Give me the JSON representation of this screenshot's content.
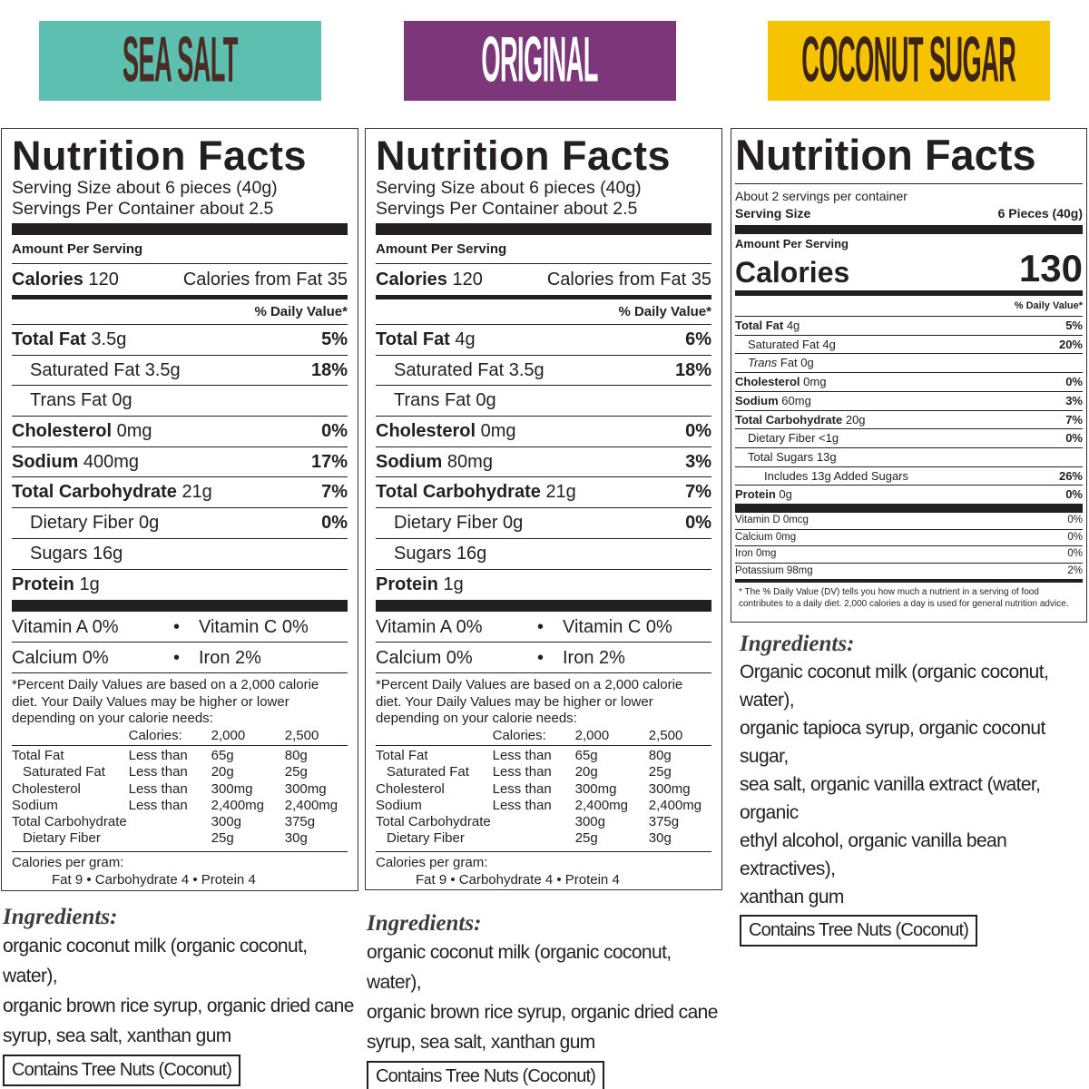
{
  "banners": {
    "left": "SEA SALT",
    "middle": "ORIGINAL",
    "right": "COCONUT SUGAR"
  },
  "colors": {
    "sea_salt": "#5cbfb0",
    "original": "#7b3779",
    "coconut_sugar": "#f6c300"
  },
  "label_old": {
    "title": "Nutrition Facts",
    "serving_size": "Serving Size about 6 pieces (40g)",
    "servings_per": "Servings Per Container about 2.5",
    "amount_per_serving": "Amount Per Serving",
    "calories_label": "Calories",
    "calories_value": "120",
    "calories_fat": "Calories from Fat 35",
    "dv_header": "% Daily Value*",
    "vit_a": "Vitamin A 0%",
    "vit_c": "Vitamin C 0%",
    "calcium": "Calcium 0%",
    "iron": "Iron 2%",
    "bullet": "•",
    "footnote": "*Percent Daily Values are based on a 2,000 calorie diet. Your Daily Values may be higher or lower depending on your calorie needs:",
    "table_header": [
      "",
      "Calories:",
      "2,000",
      "2,500"
    ],
    "table_rows": [
      [
        "Total Fat",
        "Less than",
        "65g",
        "80g"
      ],
      [
        "Saturated Fat",
        "Less than",
        "20g",
        "25g"
      ],
      [
        "Cholesterol",
        "Less than",
        "300mg",
        "300mg"
      ],
      [
        "Sodium",
        "Less than",
        "2,400mg",
        "2,400mg"
      ],
      [
        "Total Carbohydrate",
        "",
        "300g",
        "375g"
      ],
      [
        "Dietary Fiber",
        "",
        "25g",
        "30g"
      ]
    ],
    "cal_per_gram": "Calories per gram:",
    "cal_per_gram_values": "Fat 9   •   Carbohydrate 4   •   Protein 4"
  },
  "sea_salt": {
    "nutrients": [
      {
        "name": "Total Fat",
        "amount": "3.5g",
        "dv": "5%"
      },
      {
        "name": "Saturated Fat",
        "amount": "3.5g",
        "dv": "18%"
      },
      {
        "name": "Trans Fat",
        "amount": "0g",
        "dv": ""
      },
      {
        "name": "Cholesterol",
        "amount": "0mg",
        "dv": "0%"
      },
      {
        "name": "Sodium",
        "amount": "400mg",
        "dv": "17%"
      },
      {
        "name": "Total Carbohydrate",
        "amount": "21g",
        "dv": "7%"
      },
      {
        "name": "Dietary Fiber",
        "amount": "0g",
        "dv": "0%"
      },
      {
        "name": "Sugars",
        "amount": "16g",
        "dv": ""
      },
      {
        "name": "Protein",
        "amount": "1g",
        "dv": ""
      }
    ],
    "ingredients_title": "Ingredients:",
    "ingredients_lines": [
      "organic coconut milk (organic coconut, water),",
      "organic brown rice syrup, organic dried cane",
      "syrup, sea salt, xanthan gum"
    ],
    "allergen": "Contains Tree Nuts (Coconut)"
  },
  "original": {
    "nutrients": [
      {
        "name": "Total Fat",
        "amount": "4g",
        "dv": "6%"
      },
      {
        "name": "Saturated Fat",
        "amount": "3.5g",
        "dv": "18%"
      },
      {
        "name": "Trans Fat",
        "amount": "0g",
        "dv": ""
      },
      {
        "name": "Cholesterol",
        "amount": "0mg",
        "dv": "0%"
      },
      {
        "name": "Sodium",
        "amount": "80mg",
        "dv": "3%"
      },
      {
        "name": "Total Carbohydrate",
        "amount": "21g",
        "dv": "7%"
      },
      {
        "name": "Dietary Fiber",
        "amount": "0g",
        "dv": "0%"
      },
      {
        "name": "Sugars",
        "amount": "16g",
        "dv": ""
      },
      {
        "name": "Protein",
        "amount": "1g",
        "dv": ""
      }
    ],
    "ingredients_title": "Ingredients:",
    "ingredients_lines": [
      "organic coconut milk (organic coconut, water),",
      "organic brown rice syrup, organic dried cane",
      "syrup, sea salt, xanthan gum"
    ],
    "allergen": "Contains Tree Nuts (Coconut)"
  },
  "coconut_sugar": {
    "title": "Nutrition Facts",
    "servings_per": "About 2 servings per container",
    "serving_size_label": "Serving Size",
    "serving_size_value": "6 Pieces (40g)",
    "amount_per_serving": "Amount Per Serving",
    "calories_label": "Calories",
    "calories_value": "130",
    "dv_header": "% Daily Value*",
    "nutrients": [
      {
        "name": "Total Fat",
        "amount": "4g",
        "dv": "5%"
      },
      {
        "name": "Saturated Fat",
        "amount": "4g",
        "dv": "20%"
      },
      {
        "name": "Trans",
        "amount": "Fat 0g",
        "dv": ""
      },
      {
        "name": "Cholesterol",
        "amount": "0mg",
        "dv": "0%"
      },
      {
        "name": "Sodium",
        "amount": "60mg",
        "dv": "3%"
      },
      {
        "name": "Total Carbohydrate",
        "amount": "20g",
        "dv": "7%"
      },
      {
        "name": "Dietary Fiber",
        "amount": "<1g",
        "dv": "0%"
      },
      {
        "name": "Total Sugars",
        "amount": "13g",
        "dv": ""
      },
      {
        "name": "Includes 13g Added Sugars",
        "amount": "",
        "dv": "26%"
      },
      {
        "name": "Protein",
        "amount": "0g",
        "dv": "0%"
      }
    ],
    "vitamins": [
      {
        "name": "Vitamin D 0mcg",
        "dv": "0%"
      },
      {
        "name": "Calcium 0mg",
        "dv": "0%"
      },
      {
        "name": "Iron 0mg",
        "dv": "0%"
      },
      {
        "name": "Potassium 98mg",
        "dv": "2%"
      }
    ],
    "footnote": "* The % Daily Value (DV) tells you how much a nutrient in a serving of food contributes to a daily diet. 2,000 calories a day is used for general nutrition advice.",
    "ingredients_title": "Ingredients:",
    "ingredients_lines": [
      "Organic coconut milk (organic coconut, water),",
      "organic tapioca syrup, organic coconut sugar,",
      "sea salt, organic vanilla extract (water, organic",
      "ethyl alcohol, organic vanilla bean extractives),",
      "xanthan gum"
    ],
    "allergen": "Contains Tree Nuts (Coconut)"
  }
}
